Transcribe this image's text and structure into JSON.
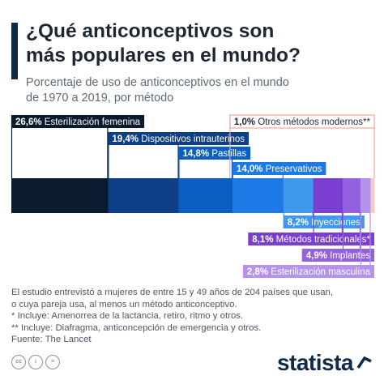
{
  "header": {
    "title_line1": "¿Qué anticonceptivos son",
    "title_line2": "más populares en el mundo?",
    "subtitle_line1": "Porcentaje de uso de anticonceptivos en el mundo",
    "subtitle_line2": "de 1970 a 2019, por método"
  },
  "chart_data": {
    "type": "bar",
    "orientation": "stacked-horizontal",
    "unit": "%",
    "categories": [
      "Esterilización femenina",
      "Dispositivos intrauterinos",
      "Pastillas",
      "Preservativos",
      "Inyecciones",
      "Métodos tradicionales*",
      "Implantes",
      "Esterilización masculina",
      "Otros métodos modernos**"
    ],
    "values": [
      26.6,
      19.4,
      14.8,
      14.0,
      8.2,
      8.1,
      4.9,
      2.8,
      1.0
    ],
    "value_labels": [
      "26,6%",
      "19,4%",
      "14,8%",
      "14,0%",
      "8,2%",
      "8,1%",
      "4,9%",
      "2,8%",
      "1,0%"
    ],
    "colors": [
      "#0a1a2f",
      "#0e3f86",
      "#0c5fc2",
      "#1c79e6",
      "#3f97ee",
      "#7a3fd0",
      "#9361e0",
      "#b593ec",
      "#f6c9c4"
    ],
    "label_colors": [
      "#0a1a2f",
      "#0e3f86",
      "#0c5fc2",
      "#1c79e6",
      "#3f97ee",
      "#7a3fd0",
      "#9361e0",
      "#b593ec",
      "#f6c9c4"
    ],
    "label_text_colors": [
      "#ffffff",
      "#ffffff",
      "#ffffff",
      "#ffffff",
      "#ffffff",
      "#ffffff",
      "#ffffff",
      "#ffffff",
      "#1d2733"
    ]
  },
  "footnotes": {
    "line1": "El estudio entrevistó a mujeres de entre 15 y 49 años de 204 países que usan,",
    "line2": "o cuya pareja usa, al menos un método anticonceptivo.",
    "line3": "*   Incluye: Amenorrea de la lactancia, retiro, ritmo y otros.",
    "line4": "** Incluye: Diafragma, anticoncepción de emergencia y otros.",
    "line5": "Fuente: The Lancet"
  },
  "footer": {
    "license_icons": [
      "cc-icon",
      "by-icon",
      "nd-icon"
    ],
    "license_labels": [
      "cc",
      "i",
      "="
    ],
    "brand": "statista"
  }
}
